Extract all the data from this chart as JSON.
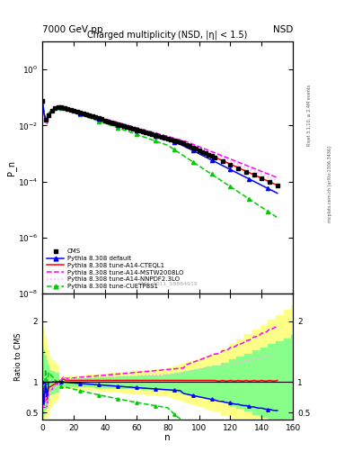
{
  "title_top": "7000 GeV pp",
  "title_right": "NSD",
  "main_title": "Charged multiplicity (NSD, |η| < 1.5)",
  "xlabel": "n",
  "ylabel_main": "P_n",
  "ylabel_ratio": "Ratio to CMS",
  "right_label_top": "Rivet 3.1.10, ≥ 2.4M events",
  "right_label_bottom": "mcplots.cern.ch [arXiv:1306.3436]",
  "watermark": "CMS_2011_S8884919",
  "xlim": [
    0,
    160
  ],
  "ylim_main": [
    1e-08,
    10
  ],
  "ylim_ratio": [
    0.39,
    2.45
  ],
  "legend_entries": [
    {
      "label": "CMS",
      "color": "black",
      "marker": "s",
      "linestyle": "none"
    },
    {
      "label": "Pythia 8.308 default",
      "color": "blue",
      "marker": "^",
      "linestyle": "-"
    },
    {
      "label": "Pythia 8.308 tune-A14-CTEQL1",
      "color": "red",
      "marker": "none",
      "linestyle": "-"
    },
    {
      "label": "Pythia 8.308 tune-A14-MSTW2008LO",
      "color": "#ff00ff",
      "marker": "none",
      "linestyle": "--"
    },
    {
      "label": "Pythia 8.308 tune-A14-NNPDF2.3LO",
      "color": "#ffaaff",
      "marker": "none",
      "linestyle": ":"
    },
    {
      "label": "Pythia 8.308 tune-CUETP8S1",
      "color": "#00cc00",
      "marker": "^",
      "linestyle": "--"
    }
  ],
  "band_yellow": "#ffff88",
  "band_green": "#88ff88"
}
